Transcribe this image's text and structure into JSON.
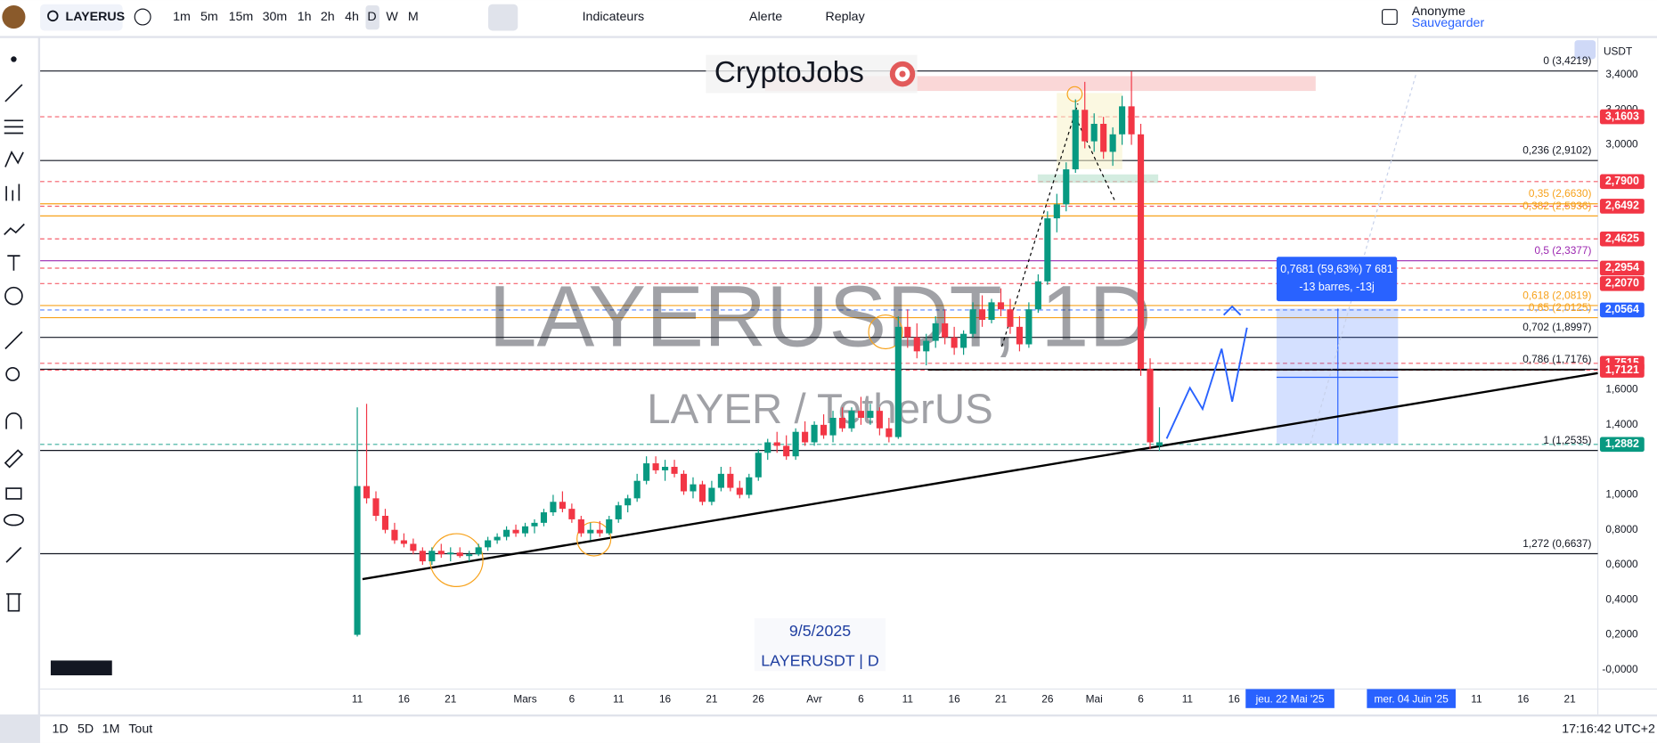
{
  "toolbar": {
    "symbol": "LAYERUS",
    "intervals": [
      "1m",
      "5m",
      "15m",
      "30m",
      "1h",
      "2h",
      "4h",
      "D",
      "W",
      "M"
    ],
    "indicators": "Indicateurs",
    "alert": "Alerte",
    "replay": "Replay",
    "user": "Anonyme",
    "save": "Sauvegarder"
  },
  "bottom_bar": {
    "ranges": [
      "1D",
      "5D",
      "1M",
      "Tout"
    ],
    "clock": "17:16:42 UTC+2"
  },
  "chart": {
    "logo": "CryptoJobs",
    "watermark_symbol": "LAYERUSDT, 1D",
    "watermark_name": "LAYER / TetherUS",
    "date_note": "9/5/2025",
    "symbol_note": "LAYERUSDT | D",
    "currency": "USDT",
    "measure": [
      "0,7681 (59,63%) 7 681",
      "-13 barres, -13j"
    ],
    "ylim": [
      -0.11,
      3.61
    ],
    "yticks": [
      {
        "value": 3.4,
        "label": "3,4000"
      },
      {
        "value": 3.2,
        "label": "3,2000"
      },
      {
        "value": 3.0,
        "label": "3,0000"
      },
      {
        "value": 1.6,
        "label": "1,6000"
      },
      {
        "value": 1.4,
        "label": "1,4000"
      },
      {
        "value": 1.0,
        "label": "1,0000"
      },
      {
        "value": 0.8,
        "label": "0,8000"
      },
      {
        "value": 0.6,
        "label": "0,6000"
      },
      {
        "value": 0.4,
        "label": "0,4000"
      },
      {
        "value": 0.2,
        "label": "0,2000"
      },
      {
        "value": 0,
        "label": "-0,0000"
      }
    ],
    "xlim": [
      "2025-01-08",
      "2025-06-24"
    ],
    "xticks": [
      {
        "value": "2025-02-11",
        "label": "11"
      },
      {
        "value": "2025-02-16",
        "label": "16"
      },
      {
        "value": "2025-02-21",
        "label": "21"
      },
      {
        "value": "2025-03-01",
        "label": "Mars"
      },
      {
        "value": "2025-03-06",
        "label": "6"
      },
      {
        "value": "2025-03-11",
        "label": "11"
      },
      {
        "value": "2025-03-16",
        "label": "16"
      },
      {
        "value": "2025-03-21",
        "label": "21"
      },
      {
        "value": "2025-03-26",
        "label": "26"
      },
      {
        "value": "2025-04-01",
        "label": "Avr"
      },
      {
        "value": "2025-04-06",
        "label": "6"
      },
      {
        "value": "2025-04-11",
        "label": "11"
      },
      {
        "value": "2025-04-16",
        "label": "16"
      },
      {
        "value": "2025-04-21",
        "label": "21"
      },
      {
        "value": "2025-04-26",
        "label": "26"
      },
      {
        "value": "2025-05-01",
        "label": "Mai"
      },
      {
        "value": "2025-05-06",
        "label": "6"
      },
      {
        "value": "2025-05-11",
        "label": "11"
      },
      {
        "value": "2025-05-16",
        "label": "16"
      },
      {
        "value": "2025-05-22",
        "label": "jeu. 22 Mai '25",
        "highlight": true
      },
      {
        "value": "2025-06-04",
        "label": "mer. 04 Juin '25",
        "highlight": true
      },
      {
        "value": "2025-06-11",
        "label": "11"
      },
      {
        "value": "2025-06-16",
        "label": "16"
      },
      {
        "value": "2025-06-21",
        "label": "21"
      }
    ],
    "fib_levels": [
      {
        "label": "0 (3,4219)",
        "price": 3.4219,
        "color": "#131722"
      },
      {
        "label": "0,236 (2,9102)",
        "price": 2.9102,
        "color": "#131722"
      },
      {
        "label": "0,35 (2,6630)",
        "price": 2.663,
        "color": "#f7a21b"
      },
      {
        "label": "0,382 (2,5936)",
        "price": 2.5936,
        "color": "#f7a21b"
      },
      {
        "label": "0,5 (2,3377)",
        "price": 2.3377,
        "color": "#9c27b0"
      },
      {
        "label": "0,618 (2,0819)",
        "price": 2.0819,
        "color": "#f7a21b"
      },
      {
        "label": "0,65 (2,0125)",
        "price": 2.0125,
        "color": "#f7a21b"
      },
      {
        "label": "0,702 (1,8997)",
        "price": 1.8997,
        "color": "#131722"
      },
      {
        "label": "0,786 (1,7176)",
        "price": 1.7176,
        "color": "#131722"
      },
      {
        "label": "1 (1,2535)",
        "price": 1.2535,
        "color": "#131722"
      },
      {
        "label": "1,272 (0,6637)",
        "price": 0.6637,
        "color": "#131722"
      }
    ],
    "price_labels": [
      {
        "label": "3,1603",
        "value": 3.1603,
        "color": "#f23645"
      },
      {
        "label": "2,7900",
        "value": 2.79,
        "color": "#f23645"
      },
      {
        "label": "2,6492",
        "value": 2.6492,
        "color": "#f23645"
      },
      {
        "label": "2,4625",
        "value": 2.4625,
        "color": "#f23645"
      },
      {
        "label": "2,2954",
        "value": 2.2954,
        "color": "#f23645"
      },
      {
        "label": "2,2070",
        "value": 2.207,
        "color": "#f23645"
      },
      {
        "label": "2,0564",
        "value": 2.0564,
        "color": "#2962ff"
      },
      {
        "label": "1,7515",
        "value": 1.7515,
        "color": "#f23645"
      },
      {
        "label": "1,7121",
        "value": 1.7121,
        "color": "#f23645"
      },
      {
        "label": "1,2882",
        "value": 1.2882,
        "color": "#089981"
      }
    ],
    "up_color": "#089981",
    "down_color": "#f23645",
    "first_date": "2025-02-11",
    "candles": [
      [
        0.2,
        1.5,
        0.19,
        1.05
      ],
      [
        1.05,
        1.52,
        0.95,
        0.98
      ],
      [
        0.98,
        1.02,
        0.85,
        0.88
      ],
      [
        0.88,
        0.92,
        0.78,
        0.8
      ],
      [
        0.8,
        0.84,
        0.72,
        0.74
      ],
      [
        0.74,
        0.78,
        0.7,
        0.72
      ],
      [
        0.72,
        0.75,
        0.66,
        0.68
      ],
      [
        0.68,
        0.7,
        0.6,
        0.62
      ],
      [
        0.62,
        0.7,
        0.6,
        0.68
      ],
      [
        0.68,
        0.72,
        0.64,
        0.66
      ],
      [
        0.66,
        0.7,
        0.62,
        0.67
      ],
      [
        0.67,
        0.7,
        0.64,
        0.65
      ],
      [
        0.65,
        0.68,
        0.62,
        0.66
      ],
      [
        0.66,
        0.72,
        0.65,
        0.7
      ],
      [
        0.7,
        0.76,
        0.68,
        0.74
      ],
      [
        0.74,
        0.78,
        0.72,
        0.76
      ],
      [
        0.76,
        0.82,
        0.74,
        0.8
      ],
      [
        0.8,
        0.83,
        0.76,
        0.78
      ],
      [
        0.78,
        0.84,
        0.76,
        0.82
      ],
      [
        0.82,
        0.86,
        0.78,
        0.84
      ],
      [
        0.84,
        0.92,
        0.82,
        0.9
      ],
      [
        0.9,
        1.0,
        0.88,
        0.96
      ],
      [
        0.96,
        1.02,
        0.9,
        0.92
      ],
      [
        0.92,
        0.95,
        0.84,
        0.86
      ],
      [
        0.86,
        0.88,
        0.76,
        0.78
      ],
      [
        0.78,
        0.84,
        0.74,
        0.8
      ],
      [
        0.8,
        0.85,
        0.76,
        0.78
      ],
      [
        0.78,
        0.88,
        0.77,
        0.86
      ],
      [
        0.86,
        0.96,
        0.84,
        0.94
      ],
      [
        0.94,
        1.0,
        0.9,
        0.98
      ],
      [
        0.98,
        1.12,
        0.96,
        1.08
      ],
      [
        1.08,
        1.22,
        1.06,
        1.18
      ],
      [
        1.18,
        1.22,
        1.12,
        1.14
      ],
      [
        1.14,
        1.2,
        1.08,
        1.16
      ],
      [
        1.16,
        1.2,
        1.1,
        1.12
      ],
      [
        1.12,
        1.14,
        1.0,
        1.02
      ],
      [
        1.02,
        1.1,
        0.98,
        1.06
      ],
      [
        1.06,
        1.08,
        0.94,
        0.96
      ],
      [
        0.96,
        1.08,
        0.94,
        1.04
      ],
      [
        1.04,
        1.16,
        1.02,
        1.12
      ],
      [
        1.12,
        1.16,
        1.02,
        1.04
      ],
      [
        1.04,
        1.08,
        0.98,
        1.0
      ],
      [
        1.0,
        1.12,
        0.98,
        1.1
      ],
      [
        1.1,
        1.26,
        1.08,
        1.24
      ],
      [
        1.24,
        1.32,
        1.2,
        1.3
      ],
      [
        1.3,
        1.36,
        1.24,
        1.28
      ],
      [
        1.28,
        1.34,
        1.2,
        1.22
      ],
      [
        1.22,
        1.38,
        1.2,
        1.36
      ],
      [
        1.36,
        1.42,
        1.28,
        1.3
      ],
      [
        1.3,
        1.42,
        1.28,
        1.4
      ],
      [
        1.4,
        1.46,
        1.32,
        1.34
      ],
      [
        1.34,
        1.48,
        1.3,
        1.44
      ],
      [
        1.44,
        1.5,
        1.36,
        1.38
      ],
      [
        1.38,
        1.5,
        1.36,
        1.48
      ],
      [
        1.48,
        1.56,
        1.4,
        1.44
      ],
      [
        1.44,
        1.52,
        1.4,
        1.48
      ],
      [
        1.48,
        1.5,
        1.34,
        1.38
      ],
      [
        1.38,
        1.44,
        1.3,
        1.33
      ],
      [
        1.33,
        2.02,
        1.32,
        1.96
      ],
      [
        1.96,
        2.06,
        1.84,
        1.9
      ],
      [
        1.9,
        1.98,
        1.78,
        1.82
      ],
      [
        1.82,
        1.92,
        1.74,
        1.88
      ],
      [
        1.88,
        2.02,
        1.84,
        1.98
      ],
      [
        1.98,
        2.06,
        1.86,
        1.9
      ],
      [
        1.9,
        1.96,
        1.8,
        1.84
      ],
      [
        1.84,
        1.94,
        1.8,
        1.92
      ],
      [
        1.92,
        2.1,
        1.9,
        2.06
      ],
      [
        2.06,
        2.14,
        1.96,
        2.0
      ],
      [
        2.0,
        2.12,
        1.98,
        2.1
      ],
      [
        2.1,
        2.18,
        2.02,
        2.06
      ],
      [
        2.06,
        2.12,
        1.92,
        1.96
      ],
      [
        1.96,
        2.02,
        1.82,
        1.86
      ],
      [
        1.86,
        2.1,
        1.84,
        2.06
      ],
      [
        2.06,
        2.26,
        2.04,
        2.22
      ],
      [
        2.22,
        2.62,
        2.2,
        2.58
      ],
      [
        2.58,
        2.72,
        2.5,
        2.66
      ],
      [
        2.66,
        2.9,
        2.62,
        2.86
      ],
      [
        2.86,
        3.26,
        2.84,
        3.2
      ],
      [
        3.2,
        3.36,
        2.98,
        3.02
      ],
      [
        3.02,
        3.18,
        2.96,
        3.12
      ],
      [
        3.12,
        3.16,
        2.92,
        2.96
      ],
      [
        2.96,
        3.1,
        2.88,
        3.06
      ],
      [
        3.06,
        3.28,
        3.0,
        3.22
      ],
      [
        3.22,
        3.42,
        3.0,
        3.06
      ],
      [
        3.06,
        3.12,
        1.68,
        1.72
      ],
      [
        1.72,
        1.78,
        1.26,
        1.3
      ],
      [
        1.28,
        1.5,
        1.25,
        1.3
      ]
    ]
  }
}
